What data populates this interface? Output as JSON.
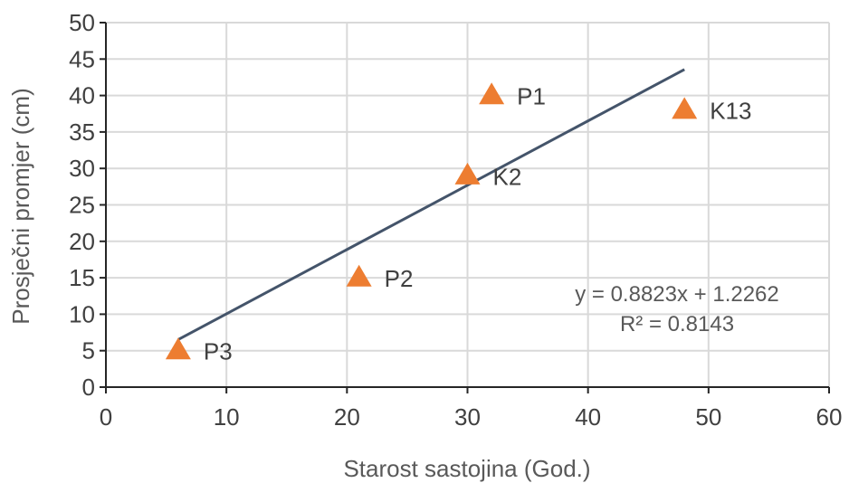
{
  "chart_data": {
    "type": "scatter",
    "xlabel": "Starost sastojina (God.)",
    "ylabel": "Prosječni promjer (cm)",
    "xlim": [
      0,
      60
    ],
    "ylim": [
      0,
      50
    ],
    "x_ticks": [
      0,
      10,
      20,
      30,
      40,
      50,
      60
    ],
    "y_ticks": [
      0,
      5,
      10,
      15,
      20,
      25,
      30,
      35,
      40,
      45,
      50
    ],
    "grid": true,
    "marker": "triangle",
    "marker_color": "#ED7D31",
    "trendline_color": "#44546A",
    "points": [
      {
        "label": "P3",
        "x": 6,
        "y": 5
      },
      {
        "label": "P2",
        "x": 21,
        "y": 15
      },
      {
        "label": "K2",
        "x": 30,
        "y": 29
      },
      {
        "label": "P1",
        "x": 32,
        "y": 40
      },
      {
        "label": "K13",
        "x": 48,
        "y": 38
      }
    ],
    "trendline": {
      "type": "linear",
      "slope": 0.8823,
      "intercept": 1.2262,
      "x_range": [
        6,
        48
      ],
      "equation_text": "y = 0.8823x + 1.2262",
      "r2_text": "R² = 0.8143"
    }
  }
}
